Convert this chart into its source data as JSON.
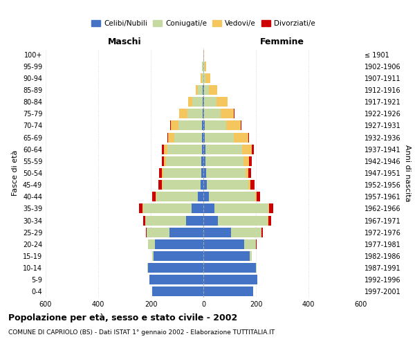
{
  "age_groups": [
    "0-4",
    "5-9",
    "10-14",
    "15-19",
    "20-24",
    "25-29",
    "30-34",
    "35-39",
    "40-44",
    "45-49",
    "50-54",
    "55-59",
    "60-64",
    "65-69",
    "70-74",
    "75-79",
    "80-84",
    "85-89",
    "90-94",
    "95-99",
    "100+"
  ],
  "birth_years": [
    "1997-2001",
    "1992-1996",
    "1987-1991",
    "1982-1986",
    "1977-1981",
    "1972-1976",
    "1967-1971",
    "1962-1966",
    "1957-1961",
    "1952-1956",
    "1947-1951",
    "1942-1946",
    "1937-1941",
    "1932-1936",
    "1927-1931",
    "1922-1926",
    "1917-1921",
    "1912-1916",
    "1907-1911",
    "1902-1906",
    "≤ 1901"
  ],
  "males": {
    "celibe": [
      195,
      205,
      210,
      190,
      185,
      130,
      65,
      45,
      20,
      10,
      8,
      7,
      6,
      5,
      5,
      3,
      3,
      2,
      1,
      1,
      0
    ],
    "coniugato": [
      0,
      0,
      2,
      5,
      25,
      85,
      155,
      185,
      160,
      145,
      145,
      135,
      130,
      105,
      90,
      58,
      38,
      18,
      5,
      3,
      1
    ],
    "vedovo": [
      0,
      0,
      0,
      0,
      0,
      1,
      1,
      2,
      2,
      3,
      5,
      8,
      15,
      25,
      30,
      30,
      18,
      10,
      4,
      1,
      0
    ],
    "divorziato": [
      0,
      0,
      0,
      0,
      1,
      3,
      8,
      12,
      12,
      12,
      10,
      8,
      8,
      3,
      2,
      1,
      0,
      0,
      0,
      0,
      0
    ]
  },
  "females": {
    "nubile": [
      190,
      205,
      200,
      175,
      155,
      105,
      55,
      42,
      22,
      12,
      10,
      8,
      8,
      5,
      5,
      3,
      3,
      2,
      1,
      1,
      0
    ],
    "coniugata": [
      0,
      1,
      3,
      10,
      45,
      115,
      190,
      205,
      175,
      160,
      150,
      145,
      140,
      110,
      82,
      62,
      48,
      20,
      8,
      3,
      1
    ],
    "vedova": [
      0,
      0,
      0,
      0,
      0,
      1,
      2,
      3,
      5,
      8,
      12,
      20,
      35,
      55,
      55,
      52,
      42,
      30,
      18,
      6,
      2
    ],
    "divorziata": [
      0,
      0,
      0,
      0,
      2,
      5,
      10,
      15,
      15,
      14,
      10,
      10,
      10,
      3,
      2,
      1,
      0,
      0,
      0,
      0,
      0
    ]
  },
  "colors": {
    "celibe": "#4472C4",
    "coniugato": "#C5D9A0",
    "vedovo": "#F5C65D",
    "divorziato": "#CC0000"
  },
  "xlim": 600,
  "title": "Popolazione per età, sesso e stato civile - 2002",
  "subtitle": "COMUNE DI CAPRIOLO (BS) - Dati ISTAT 1° gennaio 2002 - Elaborazione TUTTITALIA.IT",
  "ylabel_left": "Fasce di età",
  "ylabel_right": "Anni di nascita",
  "xlabel_maschi": "Maschi",
  "xlabel_femmine": "Femmine",
  "legend_labels": [
    "Celibi/Nubili",
    "Coniugati/e",
    "Vedovi/e",
    "Divorziati/e"
  ],
  "bg_color": "#ffffff",
  "grid_color": "#cccccc"
}
